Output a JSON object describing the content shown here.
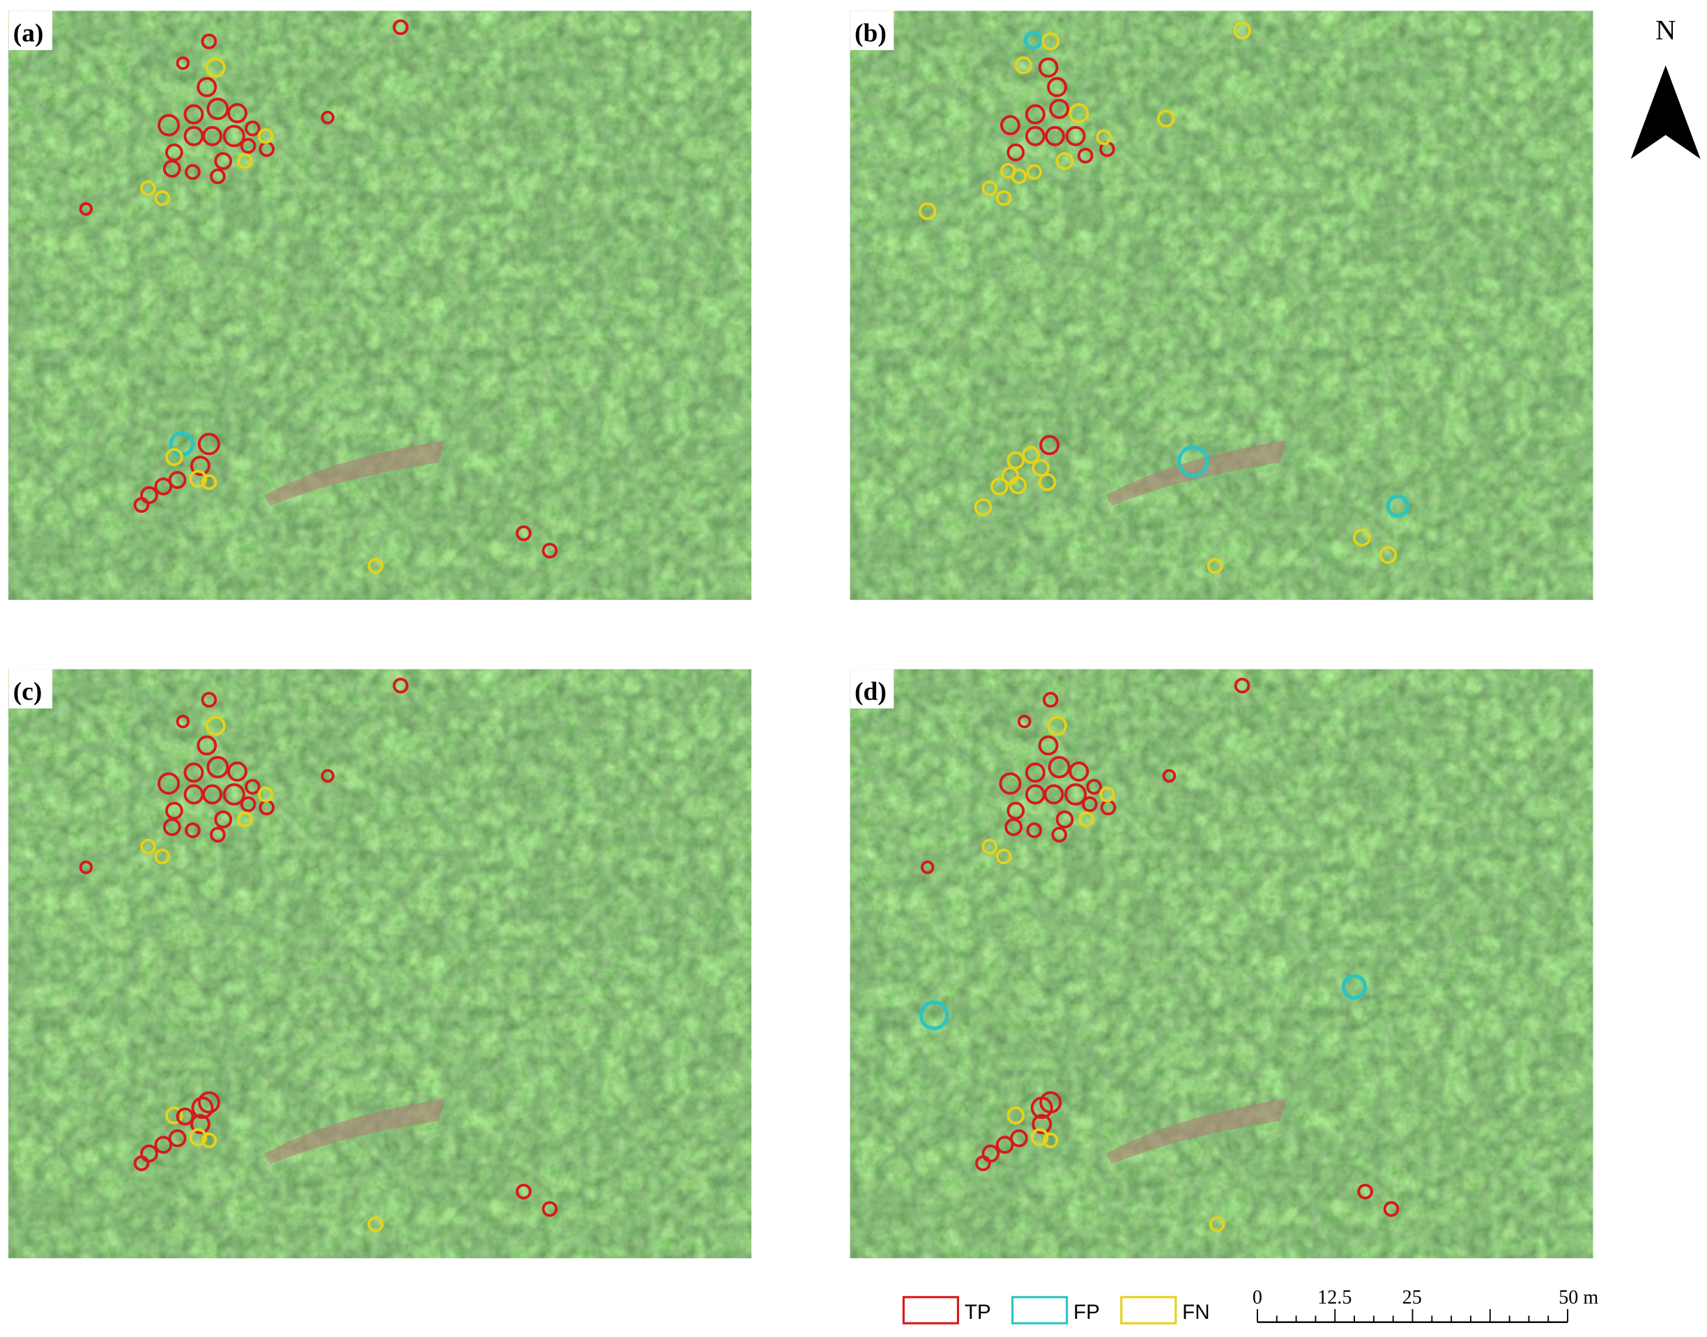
{
  "panels": [
    {
      "label": "(a)"
    },
    {
      "label": "(b)"
    },
    {
      "label": "(c)"
    },
    {
      "label": "(d)"
    }
  ],
  "north_arrow": {
    "label": "N"
  },
  "legend": [
    {
      "label": "TP",
      "color": "#d7191c"
    },
    {
      "label": "FP",
      "color": "#2ec4c0"
    },
    {
      "label": "FN",
      "color": "#e6d21a"
    }
  ],
  "scale_bar": {
    "labels": [
      "0",
      "12.5",
      "25",
      "50 m"
    ]
  }
}
